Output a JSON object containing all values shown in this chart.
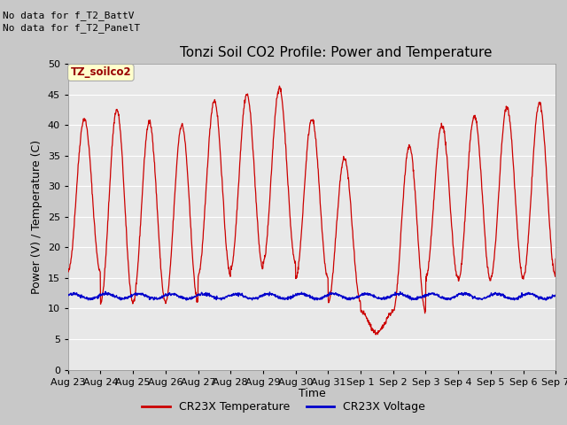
{
  "title": "Tonzi Soil CO2 Profile: Power and Temperature",
  "ylabel": "Power (V) / Temperature (C)",
  "xlabel": "Time",
  "ylim": [
    0,
    50
  ],
  "yticks": [
    0,
    5,
    10,
    15,
    20,
    25,
    30,
    35,
    40,
    45,
    50
  ],
  "x_tick_labels": [
    "Aug 23",
    "Aug 24",
    "Aug 25",
    "Aug 26",
    "Aug 27",
    "Aug 28",
    "Aug 29",
    "Aug 30",
    "Aug 31",
    "Sep 1",
    "Sep 2",
    "Sep 3",
    "Sep 4",
    "Sep 5",
    "Sep 6",
    "Sep 7"
  ],
  "note_line1": "No data for f_T2_BattV",
  "note_line2": "No data for f_T2_PanelT",
  "label_box_text": "TZ_soilco2",
  "legend_temp": "CR23X Temperature",
  "legend_volt": "CR23X Voltage",
  "temp_color": "#cc0000",
  "volt_color": "#0000cc",
  "plot_bg_color": "#e8e8e8",
  "grid_color": "#ffffff",
  "title_fontsize": 11,
  "axis_fontsize": 9,
  "tick_fontsize": 8,
  "n_days": 15,
  "peaks": [
    41,
    42.5,
    40.5,
    40,
    44,
    45,
    46,
    41,
    34.5,
    6,
    36.5,
    40,
    41.5,
    43,
    43.5,
    18
  ],
  "troughs": [
    16,
    11,
    11,
    11,
    15.5,
    16.5,
    17.5,
    15,
    11,
    9.5,
    9.5,
    15,
    14.5,
    15,
    15,
    18
  ]
}
